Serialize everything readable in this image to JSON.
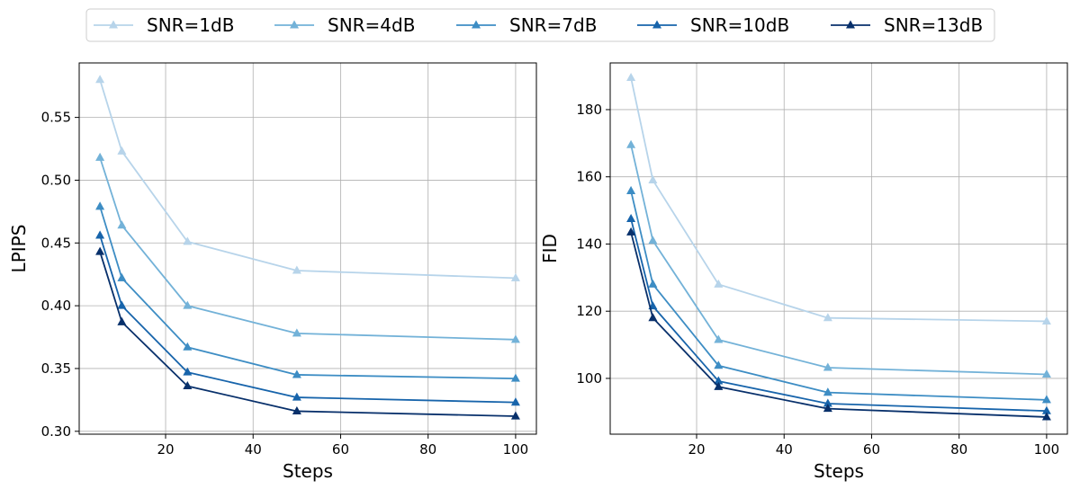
{
  "legend": {
    "entries": [
      "SNR=1dB",
      "SNR=4dB",
      "SNR=7dB",
      "SNR=10dB",
      "SNR=13dB"
    ],
    "placement": "top-center"
  },
  "colors": {
    "series": [
      "#b7d4ea",
      "#73b2d8",
      "#3d8dc4",
      "#1764ab",
      "#08306b"
    ],
    "grid": "#b0b0b0",
    "frame": "#000000"
  },
  "chart_data": [
    {
      "type": "line",
      "xlabel": "Steps",
      "ylabel": "LPIPS",
      "x": [
        5,
        10,
        25,
        50,
        100
      ],
      "xlim": [
        0.25,
        104.75
      ],
      "ylim": [
        0.2977,
        0.5934
      ],
      "xticks": [
        20,
        40,
        60,
        80,
        100
      ],
      "yticks": [
        0.3,
        0.35,
        0.4,
        0.45,
        0.5,
        0.55
      ],
      "ytick_labels": [
        "0.30",
        "0.35",
        "0.40",
        "0.45",
        "0.50",
        "0.55"
      ],
      "grid": true,
      "marker": "triangle",
      "series": [
        {
          "name": "SNR=1dB",
          "values": [
            0.58,
            0.523,
            0.451,
            0.428,
            0.422
          ]
        },
        {
          "name": "SNR=4dB",
          "values": [
            0.518,
            0.464,
            0.4,
            0.378,
            0.373
          ]
        },
        {
          "name": "SNR=7dB",
          "values": [
            0.479,
            0.422,
            0.367,
            0.345,
            0.342
          ]
        },
        {
          "name": "SNR=10dB",
          "values": [
            0.456,
            0.4,
            0.347,
            0.327,
            0.323
          ]
        },
        {
          "name": "SNR=13dB",
          "values": [
            0.443,
            0.387,
            0.336,
            0.316,
            0.312
          ]
        }
      ]
    },
    {
      "type": "line",
      "xlabel": "Steps",
      "ylabel": "FID",
      "x": [
        5,
        10,
        25,
        50,
        100
      ],
      "xlim": [
        0.25,
        104.75
      ],
      "ylim": [
        83.4,
        193.9
      ],
      "xticks": [
        20,
        40,
        60,
        80,
        100
      ],
      "yticks": [
        100,
        120,
        140,
        160,
        180
      ],
      "ytick_labels": [
        "100",
        "120",
        "140",
        "160",
        "180"
      ],
      "grid": true,
      "marker": "triangle",
      "series": [
        {
          "name": "SNR=1dB",
          "values": [
            189.5,
            159.0,
            128.0,
            118.0,
            117.0
          ]
        },
        {
          "name": "SNR=4dB",
          "values": [
            169.5,
            141.0,
            111.5,
            103.2,
            101.2
          ]
        },
        {
          "name": "SNR=7dB",
          "values": [
            155.8,
            128.0,
            103.8,
            95.8,
            93.6
          ]
        },
        {
          "name": "SNR=10dB",
          "values": [
            147.5,
            121.5,
            99.2,
            92.5,
            90.3
          ]
        },
        {
          "name": "SNR=13dB",
          "values": [
            143.5,
            118.0,
            97.5,
            91.0,
            88.5
          ]
        }
      ]
    }
  ]
}
